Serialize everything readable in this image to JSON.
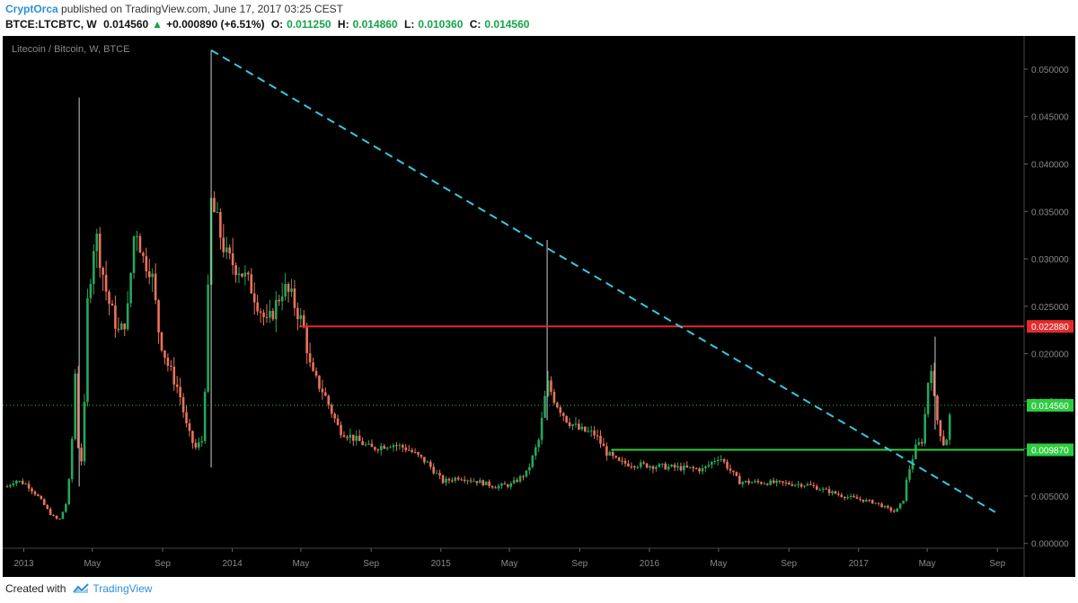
{
  "header": {
    "author": "CryptOrca",
    "published_text": " published on TradingView.com, June 17, 2017 03:25 CEST",
    "symbol": "BTCE:LTCBTC, W",
    "last": "0.014560",
    "change_arrow": "▲",
    "change": "+0.000890 (+6.51%)",
    "o_label": "O:",
    "o_value": "0.011250",
    "h_label": "H:",
    "h_value": "0.014860",
    "l_label": "L:",
    "l_value": "0.010360",
    "c_label": "C:",
    "c_value": "0.014560"
  },
  "footer": {
    "created_with": "Created with",
    "brand": "TradingView"
  },
  "chart_data": {
    "type": "candlestick",
    "title": "Litecoin / Bitcoin, W, BTCE",
    "interval": "W",
    "ylim": [
      -0.0005,
      0.0535
    ],
    "yticks": [
      "0.050000",
      "0.045000",
      "0.040000",
      "0.035000",
      "0.030000",
      "0.025000",
      "0.020000",
      "0.015000",
      "0.010000",
      "0.005000",
      "0.000000"
    ],
    "xticks": [
      "2013",
      "May",
      "Sep",
      "2014",
      "May",
      "Sep",
      "2015",
      "May",
      "Sep",
      "2016",
      "May",
      "Sep",
      "2017",
      "May",
      "Sep"
    ],
    "grid": false,
    "colors": {
      "background": "#000000",
      "up": "#26a65b",
      "down": "#e8735a",
      "text": "#888888",
      "trendline": "#35c9e0",
      "resistance": "#e52b2b",
      "support": "#2ecc40"
    },
    "horizontal_lines": [
      {
        "name": "resistance",
        "value": 0.02288,
        "label": "0.022880",
        "color": "#e52b2b"
      },
      {
        "name": "support",
        "value": 0.00987,
        "label": "0.009870",
        "color": "#2ecc40"
      }
    ],
    "last_price": {
      "value": 0.01456,
      "label": "0.014560",
      "color": "#2ecc40"
    },
    "trendline": {
      "from": [
        "2013-11-25",
        0.052
      ],
      "to": [
        "2017-08-28",
        0.0033
      ]
    },
    "price_path": [
      [
        "2012-12-03",
        0.006
      ],
      [
        "2012-12-17",
        0.0067
      ],
      [
        "2013-01-07",
        0.0062
      ],
      [
        "2013-01-28",
        0.0048
      ],
      [
        "2013-02-18",
        0.003
      ],
      [
        "2013-03-04",
        0.0024
      ],
      [
        "2013-03-18",
        0.0045
      ],
      [
        "2013-03-25",
        0.009
      ],
      [
        "2013-04-01",
        0.018
      ],
      [
        "2013-04-08",
        0.008
      ],
      [
        "2013-04-15",
        0.0095
      ],
      [
        "2013-04-22",
        0.025
      ],
      [
        "2013-05-06",
        0.033
      ],
      [
        "2013-05-27",
        0.026
      ],
      [
        "2013-06-17",
        0.022
      ],
      [
        "2013-07-01",
        0.024
      ],
      [
        "2013-07-15",
        0.034
      ],
      [
        "2013-07-29",
        0.03
      ],
      [
        "2013-08-12",
        0.029
      ],
      [
        "2013-08-26",
        0.022
      ],
      [
        "2013-09-09",
        0.019
      ],
      [
        "2013-09-30",
        0.016
      ],
      [
        "2013-10-14",
        0.012
      ],
      [
        "2013-10-28",
        0.01
      ],
      [
        "2013-11-11",
        0.011
      ],
      [
        "2013-11-25",
        0.036
      ],
      [
        "2013-12-09",
        0.033
      ],
      [
        "2013-12-23",
        0.03
      ],
      [
        "2014-01-13",
        0.029
      ],
      [
        "2014-02-03",
        0.027
      ],
      [
        "2014-03-03",
        0.023
      ],
      [
        "2014-03-31",
        0.027
      ],
      [
        "2014-04-14",
        0.026
      ],
      [
        "2014-05-05",
        0.023
      ],
      [
        "2014-05-19",
        0.018
      ],
      [
        "2014-06-09",
        0.016
      ],
      [
        "2014-07-07",
        0.012
      ],
      [
        "2014-08-04",
        0.011
      ],
      [
        "2014-09-01",
        0.01
      ],
      [
        "2014-10-06",
        0.0105
      ],
      [
        "2014-11-03",
        0.01
      ],
      [
        "2014-12-08",
        0.0085
      ],
      [
        "2015-01-05",
        0.0065
      ],
      [
        "2015-02-02",
        0.007
      ],
      [
        "2015-03-09",
        0.0065
      ],
      [
        "2015-04-06",
        0.006
      ],
      [
        "2015-05-04",
        0.0062
      ],
      [
        "2015-06-01",
        0.0075
      ],
      [
        "2015-06-22",
        0.011
      ],
      [
        "2015-07-06",
        0.017
      ],
      [
        "2015-07-20",
        0.015
      ],
      [
        "2015-08-10",
        0.013
      ],
      [
        "2015-08-31",
        0.012
      ],
      [
        "2015-09-28",
        0.0115
      ],
      [
        "2015-10-19",
        0.0095
      ],
      [
        "2015-11-09",
        0.0085
      ],
      [
        "2015-12-14",
        0.0083
      ],
      [
        "2016-02-15",
        0.008
      ],
      [
        "2016-04-04",
        0.0078
      ],
      [
        "2016-05-02",
        0.0092
      ],
      [
        "2016-06-06",
        0.0065
      ],
      [
        "2016-08-01",
        0.0064
      ],
      [
        "2016-10-03",
        0.0062
      ],
      [
        "2016-12-05",
        0.005
      ],
      [
        "2017-01-30",
        0.0043
      ],
      [
        "2017-03-06",
        0.0033
      ],
      [
        "2017-03-20",
        0.0045
      ],
      [
        "2017-03-27",
        0.007
      ],
      [
        "2017-04-10",
        0.01
      ],
      [
        "2017-04-24",
        0.011
      ],
      [
        "2017-05-01",
        0.0165
      ],
      [
        "2017-05-08",
        0.019
      ],
      [
        "2017-05-15",
        0.014
      ],
      [
        "2017-05-29",
        0.0105
      ],
      [
        "2017-06-05",
        0.0112
      ],
      [
        "2017-06-12",
        0.01456
      ]
    ],
    "spikes": [
      [
        "2013-04-08",
        0.047,
        0.006
      ],
      [
        "2013-11-25",
        0.052,
        0.008
      ],
      [
        "2015-07-06",
        0.032,
        0.013
      ],
      [
        "2017-05-15",
        0.0218,
        0.012
      ]
    ]
  }
}
